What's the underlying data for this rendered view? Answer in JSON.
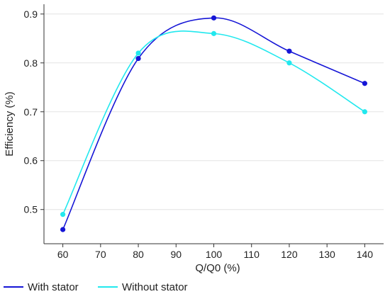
{
  "chart_data": {
    "type": "line",
    "xlabel": "Q/Q0 (%)",
    "ylabel": "Efficiency (%)",
    "xlim": [
      55,
      145
    ],
    "ylim": [
      0.43,
      0.92
    ],
    "xticks": [
      60,
      70,
      80,
      90,
      100,
      110,
      120,
      130,
      140
    ],
    "yticks": [
      0.5,
      0.6,
      0.7,
      0.8,
      0.9
    ],
    "xtick_labels": [
      "60",
      "70",
      "80",
      "90",
      "100",
      "110",
      "120",
      "130",
      "140"
    ],
    "ytick_labels": [
      "0.5",
      "0.6",
      "0.7",
      "0.8",
      "0.9"
    ],
    "grid": "horizontal",
    "legend_position": "bottom",
    "series": [
      {
        "name": "With stator",
        "color": "#1515d6",
        "x": [
          60,
          80,
          100,
          120,
          140
        ],
        "y": [
          0.459,
          0.809,
          0.892,
          0.824,
          0.758
        ]
      },
      {
        "name": "Without stator",
        "color": "#22e8ee",
        "x": [
          60,
          80,
          100,
          120,
          140
        ],
        "y": [
          0.49,
          0.82,
          0.86,
          0.8,
          0.7
        ]
      }
    ]
  }
}
